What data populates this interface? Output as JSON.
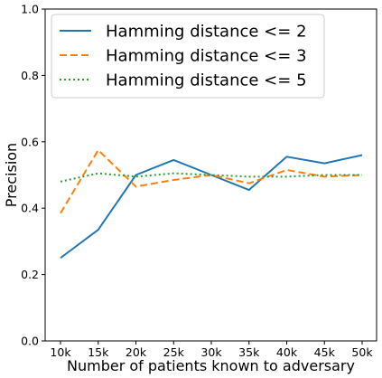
{
  "chart_data": {
    "type": "line",
    "categories": [
      "10k",
      "15k",
      "20k",
      "25k",
      "30k",
      "35k",
      "40k",
      "45k",
      "50k"
    ],
    "series": [
      {
        "name": "Hamming distance <= 2",
        "values": [
          0.25,
          0.335,
          0.5,
          0.545,
          0.5,
          0.455,
          0.555,
          0.535,
          0.56
        ],
        "color": "#1f77b4",
        "style": "solid"
      },
      {
        "name": "Hamming distance <= 3",
        "values": [
          0.385,
          0.575,
          0.465,
          0.485,
          0.5,
          0.475,
          0.515,
          0.495,
          0.5
        ],
        "color": "#ff7f0e",
        "style": "dashed"
      },
      {
        "name": "Hamming distance <= 5",
        "values": [
          0.48,
          0.505,
          0.495,
          0.505,
          0.5,
          0.495,
          0.495,
          0.5,
          0.5
        ],
        "color": "#2ca02c",
        "style": "dotted"
      }
    ],
    "xlabel": "Number of patients known to adversary",
    "ylabel": "Precision",
    "ylim": [
      0.0,
      1.0
    ],
    "yticks": [
      "0.0",
      "0.2",
      "0.4",
      "0.6",
      "0.8",
      "1.0"
    ],
    "grid": false,
    "legend_position": "top-left"
  }
}
